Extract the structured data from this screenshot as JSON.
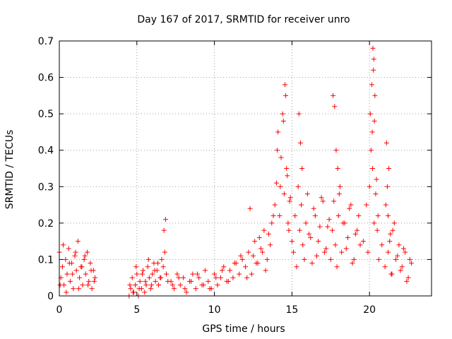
{
  "chart_data": {
    "type": "scatter",
    "title": "Day 167 of 2017, SRMTID for receiver unro",
    "xlabel": "GPS time / hours",
    "ylabel": "SRMTID / TECUs",
    "xlim": [
      0,
      24
    ],
    "ylim": [
      0,
      0.7
    ],
    "xticks": [
      0,
      5,
      10,
      15,
      20
    ],
    "yticks": [
      0,
      0.1,
      0.2,
      0.3,
      0.4,
      0.5,
      0.6,
      0.7
    ],
    "xtick_labels": [
      "0",
      "5",
      "10",
      "15",
      "20"
    ],
    "ytick_labels": [
      "0",
      "0.1",
      "0.2",
      "0.3",
      "0.4",
      "0.5",
      "0.6",
      "0.7"
    ],
    "grid": true,
    "marker": "+",
    "series": [
      {
        "name": "SRMTID",
        "color": "#ff0000",
        "x": [
          0.0,
          0.1,
          0.2,
          0.3,
          0.4,
          0.5,
          0.6,
          0.7,
          0.8,
          0.9,
          1.0,
          1.1,
          1.2,
          1.3,
          1.4,
          1.5,
          1.6,
          1.7,
          1.8,
          1.9,
          2.0,
          2.1,
          2.2,
          2.3,
          0.05,
          0.25,
          0.45,
          0.65,
          0.85,
          1.05,
          1.25,
          1.45,
          1.65,
          1.85,
          2.05,
          2.25,
          4.5,
          4.6,
          4.7,
          4.8,
          4.9,
          5.0,
          5.1,
          5.2,
          5.3,
          5.4,
          5.5,
          5.6,
          5.7,
          5.8,
          5.9,
          6.0,
          6.1,
          6.2,
          6.3,
          6.4,
          6.5,
          6.6,
          6.7,
          6.8,
          6.9,
          7.0,
          4.55,
          4.75,
          4.95,
          5.15,
          5.35,
          5.55,
          5.75,
          5.95,
          6.15,
          6.35,
          6.55,
          6.75,
          6.85,
          7.2,
          7.4,
          7.6,
          7.8,
          8.0,
          8.2,
          8.4,
          8.6,
          8.8,
          9.0,
          9.2,
          9.4,
          9.6,
          9.8,
          10.0,
          10.2,
          10.4,
          10.6,
          10.8,
          11.0,
          11.2,
          11.4,
          11.6,
          11.8,
          7.3,
          7.7,
          8.1,
          8.5,
          8.9,
          9.3,
          9.7,
          10.1,
          10.5,
          10.9,
          11.3,
          11.7,
          12.0,
          12.2,
          12.4,
          12.6,
          12.8,
          13.0,
          13.2,
          13.4,
          13.6,
          13.8,
          12.1,
          12.5,
          12.9,
          13.3,
          13.7,
          12.3,
          12.7,
          13.1,
          13.5,
          13.9,
          14.0,
          14.1,
          14.2,
          14.3,
          14.4,
          14.5,
          14.6,
          14.7,
          14.8,
          14.9,
          15.0,
          14.05,
          14.25,
          14.45,
          14.55,
          14.65,
          14.75,
          14.85,
          15.1,
          15.2,
          15.3,
          15.4,
          15.5,
          15.6,
          15.7,
          15.8,
          15.9,
          16.0,
          16.2,
          16.4,
          16.6,
          16.8,
          17.0,
          17.2,
          17.4,
          15.45,
          15.55,
          15.65,
          16.1,
          16.3,
          16.5,
          16.7,
          16.9,
          17.1,
          17.3,
          17.5,
          17.6,
          17.7,
          17.8,
          17.9,
          18.0,
          18.1,
          18.2,
          18.4,
          18.6,
          18.8,
          19.0,
          19.2,
          19.4,
          17.65,
          17.75,
          17.85,
          17.95,
          18.05,
          18.3,
          18.5,
          18.7,
          18.9,
          19.1,
          19.3,
          19.6,
          19.8,
          19.9,
          20.0,
          20.1,
          20.2,
          20.3,
          20.4,
          20.5,
          20.6,
          20.8,
          21.0,
          21.2,
          21.4,
          20.05,
          20.15,
          20.25,
          20.35,
          20.22,
          20.28,
          20.18,
          20.32,
          20.45,
          20.55,
          21.1,
          21.15,
          21.2,
          21.25,
          21.5,
          21.7,
          21.9,
          22.1,
          22.3,
          22.5,
          22.7,
          21.3,
          21.6,
          21.8,
          22.0,
          22.2,
          22.4,
          22.6,
          21.05,
          21.35,
          21.45
        ],
        "y": [
          0.12,
          0.05,
          0.08,
          0.03,
          0.1,
          0.06,
          0.13,
          0.04,
          0.09,
          0.02,
          0.11,
          0.07,
          0.15,
          0.05,
          0.08,
          0.03,
          0.1,
          0.06,
          0.12,
          0.04,
          0.09,
          0.02,
          0.07,
          0.05,
          0.03,
          0.14,
          0.01,
          0.09,
          0.06,
          0.12,
          0.02,
          0.08,
          0.11,
          0.03,
          0.07,
          0.04,
          0.0,
          0.02,
          0.05,
          0.01,
          0.03,
          0.06,
          0.0,
          0.04,
          0.02,
          0.07,
          0.01,
          0.03,
          0.08,
          0.05,
          0.02,
          0.06,
          0.09,
          0.04,
          0.07,
          0.03,
          0.05,
          0.1,
          0.08,
          0.12,
          0.06,
          0.04,
          0.03,
          0.01,
          0.08,
          0.02,
          0.06,
          0.04,
          0.1,
          0.03,
          0.07,
          0.09,
          0.05,
          0.18,
          0.21,
          0.04,
          0.02,
          0.06,
          0.03,
          0.05,
          0.01,
          0.04,
          0.06,
          0.02,
          0.05,
          0.03,
          0.07,
          0.04,
          0.02,
          0.06,
          0.03,
          0.05,
          0.08,
          0.04,
          0.07,
          0.05,
          0.09,
          0.06,
          0.1,
          0.03,
          0.05,
          0.02,
          0.04,
          0.06,
          0.03,
          0.02,
          0.05,
          0.07,
          0.04,
          0.09,
          0.11,
          0.08,
          0.12,
          0.06,
          0.15,
          0.09,
          0.13,
          0.18,
          0.1,
          0.14,
          0.22,
          0.05,
          0.11,
          0.16,
          0.07,
          0.2,
          0.24,
          0.09,
          0.12,
          0.17,
          0.25,
          0.31,
          0.45,
          0.22,
          0.38,
          0.5,
          0.28,
          0.55,
          0.33,
          0.18,
          0.27,
          0.15,
          0.4,
          0.3,
          0.48,
          0.58,
          0.35,
          0.2,
          0.26,
          0.12,
          0.22,
          0.08,
          0.3,
          0.18,
          0.25,
          0.14,
          0.1,
          0.2,
          0.28,
          0.16,
          0.24,
          0.11,
          0.19,
          0.26,
          0.13,
          0.21,
          0.5,
          0.42,
          0.35,
          0.17,
          0.09,
          0.22,
          0.15,
          0.27,
          0.12,
          0.19,
          0.1,
          0.18,
          0.26,
          0.14,
          0.08,
          0.22,
          0.3,
          0.12,
          0.2,
          0.16,
          0.25,
          0.1,
          0.18,
          0.14,
          0.55,
          0.52,
          0.4,
          0.35,
          0.28,
          0.2,
          0.13,
          0.24,
          0.09,
          0.17,
          0.22,
          0.15,
          0.25,
          0.12,
          0.3,
          0.4,
          0.35,
          0.2,
          0.28,
          0.18,
          0.1,
          0.14,
          0.08,
          0.12,
          0.06,
          0.5,
          0.58,
          0.62,
          0.55,
          0.68,
          0.65,
          0.45,
          0.48,
          0.32,
          0.22,
          0.42,
          0.3,
          0.22,
          0.35,
          0.18,
          0.1,
          0.14,
          0.08,
          0.12,
          0.05,
          0.09,
          0.15,
          0.2,
          0.11,
          0.07,
          0.13,
          0.04,
          0.1,
          0.25,
          0.17,
          0.06
        ]
      }
    ]
  }
}
